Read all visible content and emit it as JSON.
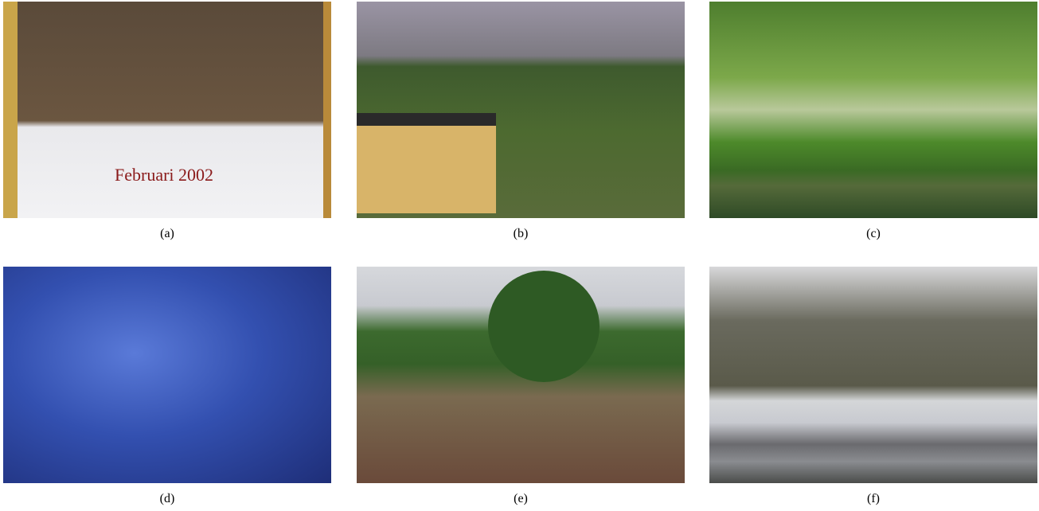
{
  "figure": {
    "panels": [
      {
        "label": "(a)",
        "image_text": "Februari 2002"
      },
      {
        "label": "(b)"
      },
      {
        "label": "(c)"
      },
      {
        "label": "(d)"
      },
      {
        "label": "(e)"
      },
      {
        "label": "(f)"
      }
    ]
  }
}
